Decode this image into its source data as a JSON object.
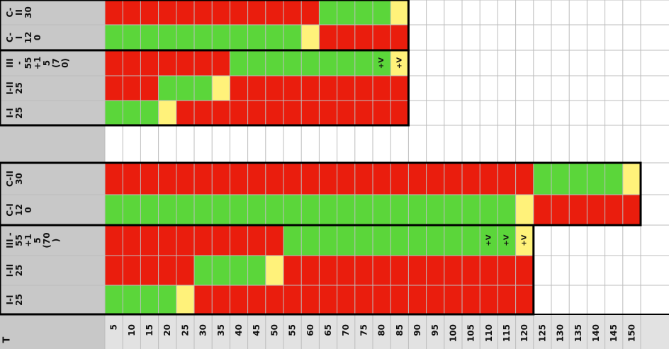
{
  "colors": {
    "red": "#ea1d0d",
    "green": "#5bd63a",
    "yellow": "#fff27a",
    "white": "#ffffff",
    "label_bg": "#c8c8c8",
    "header_bg": "#e2e2e2",
    "grid": "#bdbdbd",
    "border": "#000000"
  },
  "chart_data": {
    "type": "table",
    "x_label": "T",
    "columns": [
      "5",
      "10",
      "15",
      "20",
      "25",
      "30",
      "35",
      "40",
      "45",
      "50",
      "55",
      "60",
      "65",
      "70",
      "75",
      "80",
      "85",
      "90",
      "95",
      "100",
      "105",
      "110",
      "115",
      "120",
      "125",
      "130",
      "135",
      "140",
      "145",
      "150"
    ],
    "legend_codes": {
      "R": "red",
      "G": "green",
      "Y": "yellow",
      "W": "white"
    },
    "rows": [
      {
        "label": [
          "C-",
          "II",
          "30"
        ],
        "cells": "RRRRRRRRRRRRGGGGYWWWWWWWWWWWWW",
        "notes": []
      },
      {
        "label": [
          "C-",
          "I",
          "12",
          "0"
        ],
        "cells": "GGGGGGGGGGGYRRRRRWWWWWWWWWWWWW",
        "notes": []
      },
      {
        "label": [
          "III",
          "-",
          "55",
          "+1",
          "5",
          "(7",
          "0)"
        ],
        "cells": "RRRRRRRGGGGGGGGGYWWWWWWWWWWWWW",
        "notes": [
          {
            "col": 15,
            "text": "+V"
          },
          {
            "col": 16,
            "text": "+V"
          }
        ]
      },
      {
        "label": [
          "I-II",
          "25"
        ],
        "cells": "RRRGGGYRRRRRRRRRRWWWWWWWWWWWWW",
        "notes": []
      },
      {
        "label": [
          "I-I",
          "25"
        ],
        "cells": "GGGYRRRRRRRRRRRRRWWWWWWWWWWWWW",
        "notes": []
      },
      {
        "label": [],
        "cells": "WWWWWWWWWWWWWWWWWWWWWWWWWWWWWW",
        "notes": []
      },
      {
        "label": [
          "C-II",
          "30"
        ],
        "cells": "RRRRRRRRRRRRRRRRRRRRRRRRGGGGGY",
        "notes": []
      },
      {
        "label": [
          "C-I",
          "12",
          "0"
        ],
        "cells": "GGGGGGGGGGGGGGGGGGGGGGGYRRRRRR",
        "notes": []
      },
      {
        "label": [
          "III -",
          "55",
          "+1",
          "5",
          "(70",
          ")"
        ],
        "cells": "RRRRRRRRRRGGGGGGGGGGGGGYWWWWWW",
        "notes": [
          {
            "col": 21,
            "text": "+V"
          },
          {
            "col": 22,
            "text": "+V"
          },
          {
            "col": 23,
            "text": "+V"
          }
        ]
      },
      {
        "label": [
          "I-II",
          "25"
        ],
        "cells": "RRRRRGGGGYRRRRRRRRRRRRRRWWWWWW",
        "notes": []
      },
      {
        "label": [
          "I-I",
          "25"
        ],
        "cells": "GGGGYRRRRRRRRRRRRRRRRRRRWWWWWW",
        "notes": []
      }
    ]
  }
}
